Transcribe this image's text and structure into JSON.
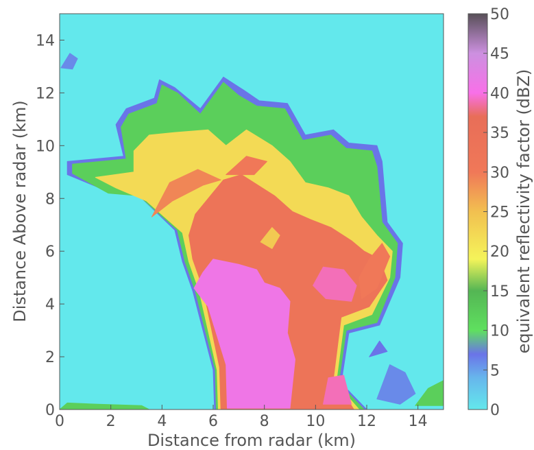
{
  "chart_data": {
    "type": "heatmap",
    "title": "",
    "xlabel": "Distance from radar (km)",
    "ylabel": "Distance Above radar  (km)",
    "xlim": [
      0,
      15
    ],
    "ylim": [
      0,
      15
    ],
    "x_ticks": [
      0,
      2,
      4,
      6,
      8,
      10,
      12,
      14
    ],
    "y_ticks": [
      0,
      2,
      4,
      6,
      8,
      10,
      12,
      14
    ],
    "colorbar": {
      "label": "equivalent reflectivity factor (dBZ)",
      "range": [
        0,
        50
      ],
      "ticks": [
        0,
        5,
        10,
        15,
        20,
        25,
        30,
        35,
        40,
        45,
        50
      ],
      "colors": [
        {
          "value": 0,
          "color": "#63e8ec"
        },
        {
          "value": 4,
          "color": "#67b6ec"
        },
        {
          "value": 7,
          "color": "#6a74e8"
        },
        {
          "value": 10,
          "color": "#5fe05f"
        },
        {
          "value": 15,
          "color": "#54b654"
        },
        {
          "value": 19,
          "color": "#f4f45a"
        },
        {
          "value": 25,
          "color": "#f2c050"
        },
        {
          "value": 30,
          "color": "#f07858"
        },
        {
          "value": 37,
          "color": "#e86e58"
        },
        {
          "value": 40,
          "color": "#f870e8"
        },
        {
          "value": 45,
          "color": "#cc90e0"
        },
        {
          "value": 50,
          "color": "#585058"
        }
      ]
    },
    "background_value_dBZ": 0,
    "regions": [
      {
        "name": "echo-edge",
        "dBZ": 7,
        "outline": [
          [
            6.05,
            0
          ],
          [
            6.0,
            1.5
          ],
          [
            5.2,
            4.5
          ],
          [
            4.8,
            5.6
          ],
          [
            4.5,
            6.8
          ],
          [
            3.0,
            8.2
          ],
          [
            1.8,
            8.3
          ],
          [
            0.3,
            8.9
          ],
          [
            0.3,
            9.4
          ],
          [
            2.5,
            9.6
          ],
          [
            2.2,
            10.8
          ],
          [
            2.6,
            11.4
          ],
          [
            3.7,
            11.8
          ],
          [
            3.9,
            12.5
          ],
          [
            4.5,
            12.2
          ],
          [
            5.5,
            11.4
          ],
          [
            6.4,
            12.6
          ],
          [
            7.2,
            12.1
          ],
          [
            7.8,
            11.7
          ],
          [
            8.9,
            11.6
          ],
          [
            9.6,
            10.4
          ],
          [
            10.7,
            10.6
          ],
          [
            11.3,
            10.1
          ],
          [
            12.4,
            10.0
          ],
          [
            12.6,
            9.4
          ],
          [
            12.8,
            7.1
          ],
          [
            13.4,
            6.3
          ],
          [
            13.3,
            5.0
          ],
          [
            12.5,
            3.2
          ],
          [
            11.3,
            2.9
          ],
          [
            11.0,
            1.0
          ],
          [
            12.0,
            0
          ]
        ]
      },
      {
        "name": "echo-green",
        "dBZ": 12,
        "outline": [
          [
            6.12,
            0
          ],
          [
            6.08,
            1.5
          ],
          [
            5.3,
            4.5
          ],
          [
            4.9,
            5.6
          ],
          [
            4.6,
            6.8
          ],
          [
            3.1,
            8.1
          ],
          [
            1.9,
            8.2
          ],
          [
            0.5,
            8.95
          ],
          [
            0.5,
            9.3
          ],
          [
            2.6,
            9.5
          ],
          [
            2.4,
            10.7
          ],
          [
            2.7,
            11.2
          ],
          [
            3.8,
            11.6
          ],
          [
            4.0,
            12.3
          ],
          [
            4.6,
            12.0
          ],
          [
            5.5,
            11.2
          ],
          [
            6.4,
            12.4
          ],
          [
            7.0,
            11.9
          ],
          [
            7.7,
            11.5
          ],
          [
            8.8,
            11.4
          ],
          [
            9.5,
            10.2
          ],
          [
            10.6,
            10.4
          ],
          [
            11.2,
            9.9
          ],
          [
            12.2,
            9.8
          ],
          [
            12.4,
            9.2
          ],
          [
            12.6,
            7.1
          ],
          [
            13.2,
            6.3
          ],
          [
            13.1,
            5.0
          ],
          [
            12.4,
            3.3
          ],
          [
            11.2,
            3.0
          ],
          [
            10.9,
            1.0
          ],
          [
            11.9,
            0
          ]
        ]
      },
      {
        "name": "echo-yellow",
        "dBZ": 22,
        "outline": [
          [
            6.2,
            0
          ],
          [
            6.15,
            1.5
          ],
          [
            5.45,
            4.5
          ],
          [
            5.05,
            5.6
          ],
          [
            4.8,
            6.7
          ],
          [
            3.4,
            7.9
          ],
          [
            2.2,
            8.4
          ],
          [
            1.4,
            8.8
          ],
          [
            2.9,
            9.0
          ],
          [
            2.9,
            9.8
          ],
          [
            3.5,
            10.4
          ],
          [
            4.5,
            10.5
          ],
          [
            5.8,
            10.6
          ],
          [
            6.5,
            10.0
          ],
          [
            7.3,
            10.6
          ],
          [
            8.3,
            10.0
          ],
          [
            9.0,
            9.4
          ],
          [
            9.6,
            8.6
          ],
          [
            10.5,
            8.4
          ],
          [
            11.3,
            8.1
          ],
          [
            11.8,
            7.3
          ],
          [
            12.4,
            6.6
          ],
          [
            13.0,
            6.0
          ],
          [
            12.9,
            5.0
          ],
          [
            12.2,
            3.6
          ],
          [
            11.1,
            3.2
          ],
          [
            10.8,
            1.0
          ],
          [
            11.7,
            0
          ]
        ]
      },
      {
        "name": "echo-orange",
        "dBZ": 33,
        "outline": [
          [
            6.3,
            0
          ],
          [
            6.25,
            1.6
          ],
          [
            5.6,
            4.6
          ],
          [
            5.2,
            5.7
          ],
          [
            5.05,
            6.6
          ],
          [
            5.3,
            7.4
          ],
          [
            6.4,
            8.7
          ],
          [
            7.1,
            8.9
          ],
          [
            8.4,
            8.1
          ],
          [
            9.1,
            7.5
          ],
          [
            9.8,
            7.2
          ],
          [
            10.6,
            6.9
          ],
          [
            11.4,
            6.4
          ],
          [
            11.9,
            6.0
          ],
          [
            12.5,
            5.7
          ],
          [
            12.8,
            4.9
          ],
          [
            12.1,
            3.9
          ],
          [
            11.0,
            3.5
          ],
          [
            10.7,
            1.2
          ],
          [
            11.5,
            0
          ]
        ]
      },
      {
        "name": "core-magenta",
        "dBZ": 41,
        "outline": [
          [
            6.55,
            0.05
          ],
          [
            6.5,
            1.7
          ],
          [
            5.8,
            3.9
          ],
          [
            5.25,
            4.6
          ],
          [
            5.6,
            5.2
          ],
          [
            6.0,
            5.7
          ],
          [
            7.0,
            5.5
          ],
          [
            7.7,
            5.3
          ],
          [
            8.0,
            4.8
          ],
          [
            8.6,
            4.6
          ],
          [
            9.0,
            4.1
          ],
          [
            8.9,
            2.9
          ],
          [
            9.2,
            1.9
          ],
          [
            9.0,
            0.05
          ]
        ]
      },
      {
        "name": "side-pink",
        "dBZ": 39,
        "outline": [
          [
            9.9,
            4.7
          ],
          [
            10.3,
            5.4
          ],
          [
            11.1,
            5.3
          ],
          [
            11.6,
            4.7
          ],
          [
            11.4,
            4.1
          ],
          [
            10.4,
            4.2
          ]
        ]
      },
      {
        "name": "lower-pink",
        "dBZ": 39,
        "outline": [
          [
            10.3,
            0.2
          ],
          [
            10.5,
            1.2
          ],
          [
            11.1,
            1.3
          ],
          [
            11.4,
            0.2
          ]
        ]
      },
      {
        "name": "anvil-orange-left",
        "dBZ": 29,
        "outline": [
          [
            3.6,
            7.3
          ],
          [
            4.4,
            7.9
          ],
          [
            5.6,
            8.5
          ],
          [
            6.3,
            8.7
          ],
          [
            5.4,
            9.1
          ],
          [
            4.3,
            8.6
          ]
        ]
      },
      {
        "name": "upper-orange",
        "dBZ": 30,
        "outline": [
          [
            6.5,
            8.9
          ],
          [
            7.3,
            9.6
          ],
          [
            8.1,
            9.4
          ],
          [
            7.6,
            8.9
          ]
        ]
      },
      {
        "name": "right-orange",
        "dBZ": 30,
        "outline": [
          [
            11.8,
            4.2
          ],
          [
            12.4,
            4.6
          ],
          [
            12.9,
            5.8
          ],
          [
            12.6,
            6.3
          ],
          [
            12.1,
            5.7
          ],
          [
            11.7,
            5.0
          ]
        ]
      },
      {
        "name": "light-hole",
        "dBZ": 24,
        "outline": [
          [
            7.85,
            6.35
          ],
          [
            8.3,
            6.9
          ],
          [
            8.6,
            6.6
          ],
          [
            8.3,
            6.1
          ]
        ]
      },
      {
        "name": "top-left-blob",
        "dBZ": 6,
        "outline": [
          [
            0.05,
            12.95
          ],
          [
            0.4,
            13.5
          ],
          [
            0.7,
            13.3
          ],
          [
            0.5,
            12.9
          ]
        ]
      },
      {
        "name": "ground-clutter",
        "dBZ": 12,
        "outline": [
          [
            0.0,
            0.0
          ],
          [
            0.3,
            0.25
          ],
          [
            1.5,
            0.2
          ],
          [
            3.2,
            0.15
          ],
          [
            3.5,
            0.0
          ]
        ]
      },
      {
        "name": "right-cells-green",
        "dBZ": 12,
        "outline": [
          [
            13.9,
            0.15
          ],
          [
            14.4,
            0.8
          ],
          [
            15.0,
            1.1
          ],
          [
            15.0,
            0.15
          ]
        ]
      },
      {
        "name": "right-cells-blue",
        "dBZ": 6,
        "outline": [
          [
            12.4,
            0.4
          ],
          [
            12.9,
            1.7
          ],
          [
            13.5,
            1.4
          ],
          [
            13.9,
            0.6
          ],
          [
            13.3,
            0.2
          ]
        ]
      },
      {
        "name": "far-right-blob",
        "dBZ": 7,
        "outline": [
          [
            12.1,
            2.0
          ],
          [
            12.5,
            2.6
          ],
          [
            12.8,
            2.2
          ]
        ]
      }
    ]
  }
}
